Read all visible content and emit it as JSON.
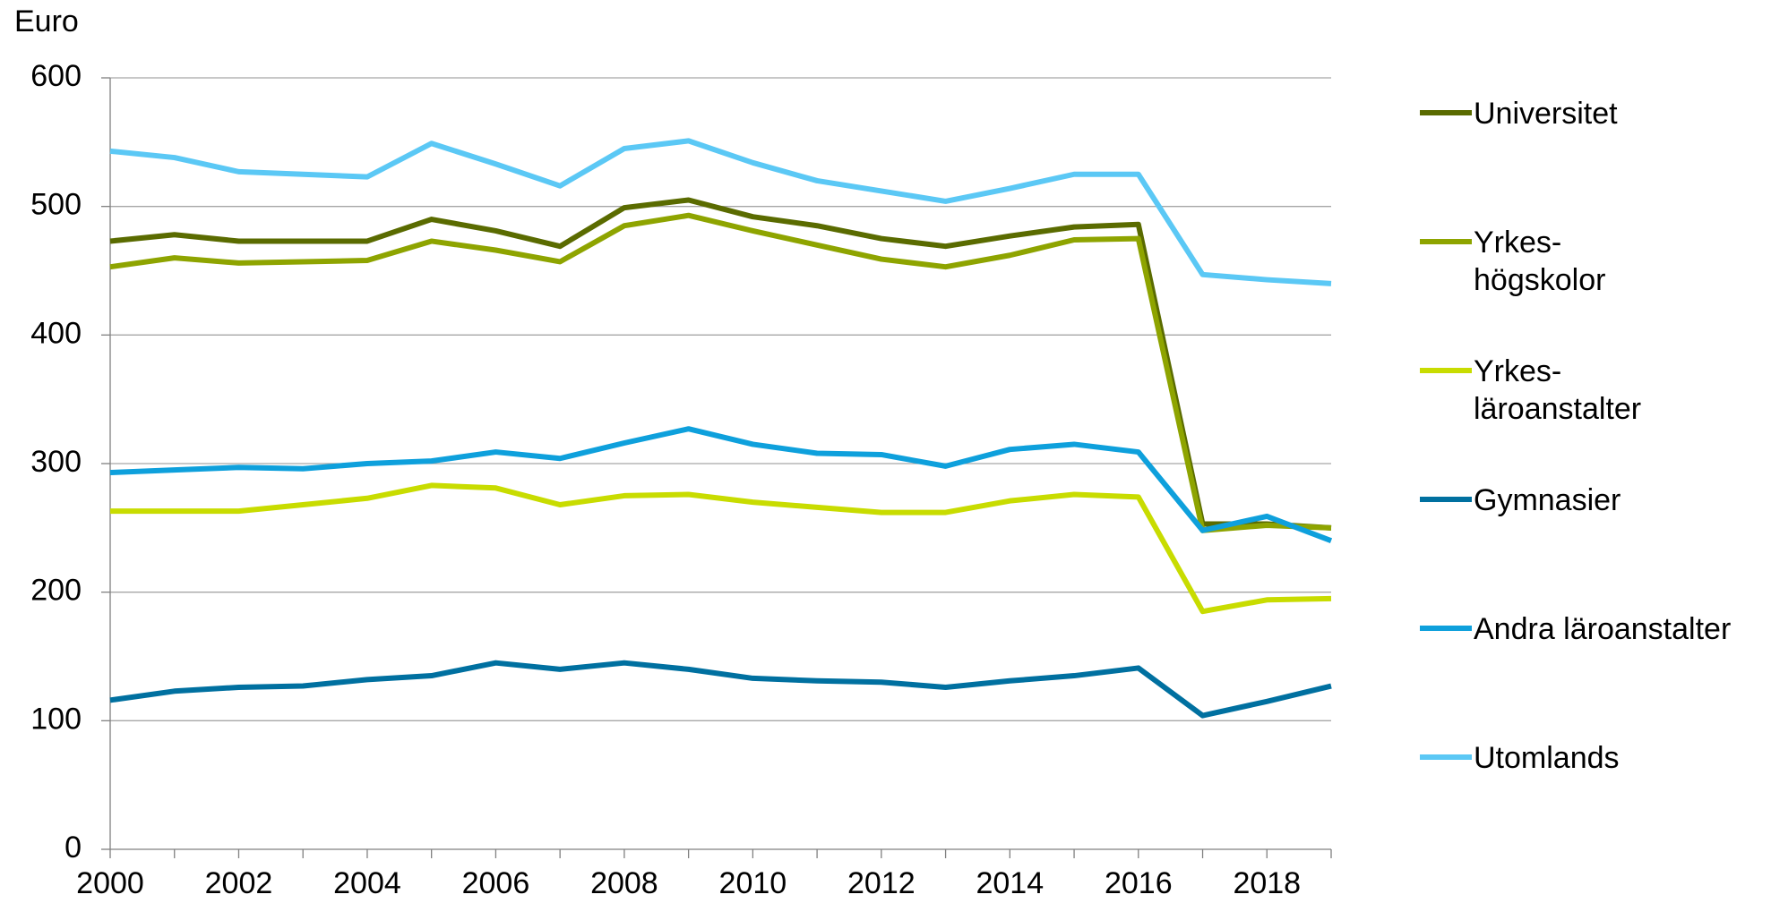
{
  "chart_data": {
    "type": "line",
    "y_label": "Euro",
    "x": [
      2000,
      2001,
      2002,
      2003,
      2004,
      2005,
      2006,
      2007,
      2008,
      2009,
      2010,
      2011,
      2012,
      2013,
      2014,
      2015,
      2016,
      2017,
      2018,
      2019
    ],
    "xlim": [
      2000,
      2019
    ],
    "xticks": [
      2000,
      2002,
      2004,
      2006,
      2008,
      2010,
      2012,
      2014,
      2016,
      2018
    ],
    "ylim": [
      0,
      600
    ],
    "yticks": [
      0,
      100,
      200,
      300,
      400,
      500,
      600
    ],
    "grid": true,
    "legend": "right",
    "series": [
      {
        "name": "Universitet",
        "color": "#5a6b00",
        "values": [
          473,
          478,
          473,
          473,
          473,
          490,
          481,
          469,
          499,
          505,
          492,
          485,
          475,
          469,
          477,
          484,
          486,
          253,
          253,
          250
        ]
      },
      {
        "name": "Yrkes-\nhögskolor",
        "color": "#8ea400",
        "values": [
          453,
          460,
          456,
          457,
          458,
          473,
          466,
          457,
          485,
          493,
          481,
          470,
          459,
          453,
          462,
          474,
          475,
          248,
          252,
          250
        ]
      },
      {
        "name": "Yrkes-\nläroanstalter",
        "color": "#c8dc00",
        "values": [
          263,
          263,
          263,
          268,
          273,
          283,
          281,
          268,
          275,
          276,
          270,
          266,
          262,
          262,
          271,
          276,
          274,
          185,
          194,
          195
        ]
      },
      {
        "name": "Gymnasier",
        "color": "#0070a0",
        "values": [
          116,
          123,
          126,
          127,
          132,
          135,
          145,
          140,
          145,
          140,
          133,
          131,
          130,
          126,
          131,
          135,
          141,
          104,
          115,
          127
        ]
      },
      {
        "name": "Andra läroanstalter",
        "color": "#0ea0dc",
        "values": [
          293,
          295,
          297,
          296,
          300,
          302,
          309,
          304,
          316,
          327,
          315,
          308,
          307,
          298,
          311,
          315,
          309,
          248,
          259,
          240
        ]
      },
      {
        "name": "Utomlands",
        "color": "#5bc8f5",
        "values": [
          543,
          538,
          527,
          525,
          523,
          549,
          533,
          516,
          545,
          551,
          534,
          520,
          512,
          504,
          514,
          525,
          525,
          447,
          443,
          440
        ]
      }
    ]
  }
}
